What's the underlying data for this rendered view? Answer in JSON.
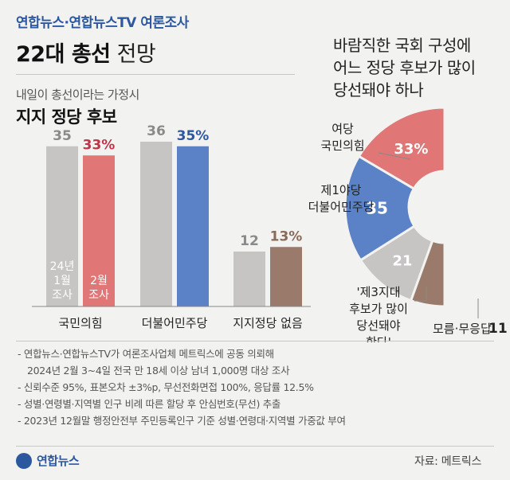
{
  "header": {
    "subtitle": "연합뉴스·연합뉴스TV 여론조사",
    "title_bold": "22대 총선",
    "title_normal": "전망"
  },
  "left_panel": {
    "subtitle": "내일이 총선이라는 가정시",
    "title": "지지 정당 후보"
  },
  "right_panel": {
    "question_lines": [
      "바람직한 국회 구성에",
      "어느 정당 후보가 많이",
      "당선돼야 하나"
    ]
  },
  "colors": {
    "jan_bar": "#c7c5c3",
    "ppp": "#e07676",
    "dp": "#5b82c7",
    "third": "#c7c5c3",
    "unknown": "#9a7b6b",
    "accent_text": "#2c58a0"
  },
  "chart_data": [
    {
      "type": "bar",
      "title": "지지 정당 후보",
      "categories": [
        "국민의힘",
        "더불어민주당",
        "지지정당 없음"
      ],
      "series": [
        {
          "name": "24년 1월 조사",
          "label_lines": [
            "24년",
            "1월",
            "조사"
          ],
          "values": [
            35,
            36,
            12
          ],
          "value_labels": [
            "35",
            "36",
            "12"
          ]
        },
        {
          "name": "2월 조사",
          "label_lines": [
            "2월",
            "조사"
          ],
          "values": [
            33,
            35,
            13
          ],
          "value_labels": [
            "33%",
            "35%",
            "13%"
          ]
        }
      ],
      "bar_colors": [
        [
          "#c7c5c3",
          "#e07676"
        ],
        [
          "#c7c5c3",
          "#5b82c7"
        ],
        [
          "#c7c5c3",
          "#9a7b6b"
        ]
      ],
      "value_label_colors": [
        [
          "#8a8a8a",
          "#c0344a"
        ],
        [
          "#8a8a8a",
          "#2c58a0"
        ],
        [
          "#8a8a8a",
          "#8a6a58"
        ]
      ]
    },
    {
      "type": "pie",
      "title": "바람직한 국회 구성에 어느 정당 후보가 많이 당선돼야 하나",
      "slices": [
        {
          "label_lines": [
            "여당",
            "국민의힘"
          ],
          "value": 33,
          "value_label": "33%",
          "color": "#e07676"
        },
        {
          "label_lines": [
            "제1야당",
            "더불어민주당"
          ],
          "value": 35,
          "value_label": "35",
          "color": "#5b82c7"
        },
        {
          "label_lines": [
            "'제3지대",
            "후보가 많이",
            "당선돼야",
            "한다'"
          ],
          "value": 21,
          "value_label": "21",
          "color": "#c7c5c3"
        },
        {
          "label_lines": [
            "모름·무응답"
          ],
          "value": 11,
          "value_label": "11",
          "color": "#9a7b6b"
        }
      ]
    }
  ],
  "footnotes": [
    {
      "line1": "- 연합뉴스·연합뉴스TV가 여론조사업체 메트릭스에 공동 의뢰해",
      "line2": "2024년 2월 3~4일 전국 만 18세 이상 남녀 1,000명 대상 조사"
    },
    {
      "line1": "- 신뢰수준 95%, 표본오차 ±3%p, 무선전화면접 100%, 응답률 12.5%"
    },
    {
      "line1": "- 성별·연령별·지역별 인구 비례 따른 할당 후 안심번호(무선) 추출"
    },
    {
      "line1": "- 2023년 12월말 행정안전부 주민등록인구 기준 성별·연령대·지역별 가중값 부여"
    }
  ],
  "logo_text": "연합뉴스",
  "source": "자료: 메트릭스"
}
